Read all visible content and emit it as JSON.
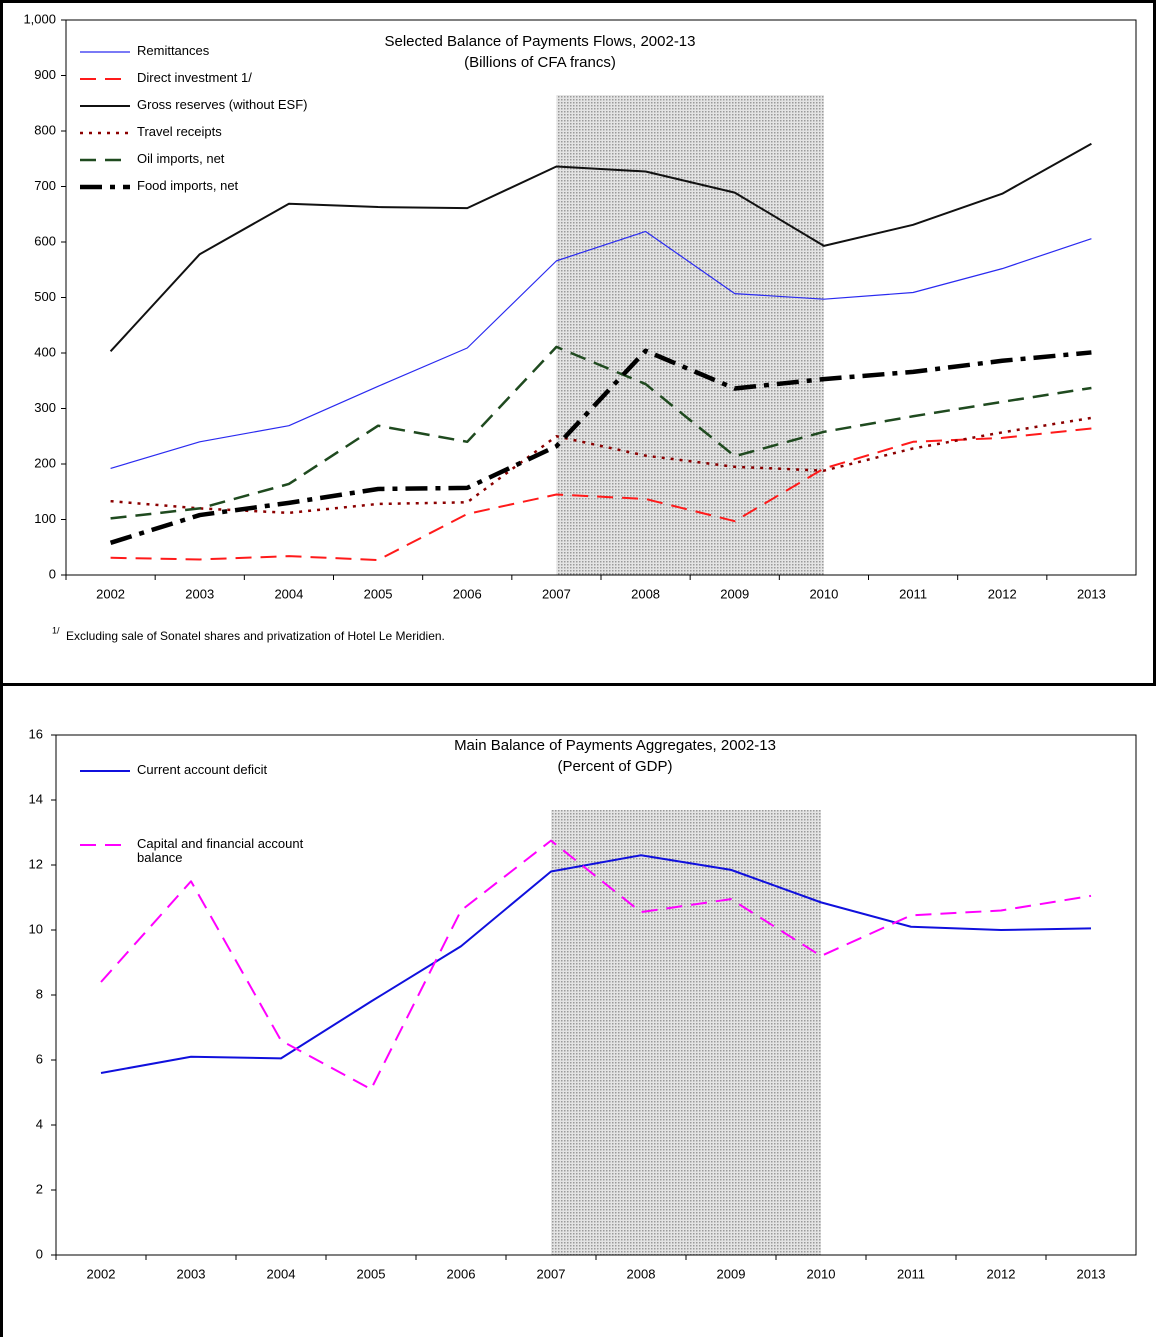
{
  "chart_data": [
    {
      "type": "line",
      "title": "Selected Balance of Payments Flows, 2002-13",
      "subtitle": "(Billions of CFA francs)",
      "categories": [
        "2002",
        "2003",
        "2004",
        "2005",
        "2006",
        "2007",
        "2008",
        "2009",
        "2010",
        "2011",
        "2012",
        "2013"
      ],
      "ylim": [
        0,
        1000
      ],
      "yticks": [
        0,
        100,
        200,
        300,
        400,
        500,
        600,
        700,
        800,
        900,
        {
          "value": 1000,
          "label": "1,000"
        }
      ],
      "shaded": [
        "2007",
        "2010"
      ],
      "series": [
        {
          "name": "Remittances",
          "color": "#2a2af0",
          "style": "solid",
          "width": 1.2,
          "values": [
            192,
            240,
            269,
            340,
            409,
            566,
            619,
            507,
            497,
            509,
            552,
            606
          ]
        },
        {
          "name": "Direct investment 1/",
          "color": "#ff1a1a",
          "style": "dashed",
          "width": 2,
          "values": [
            31,
            28,
            34,
            27,
            110,
            145,
            137,
            97,
            192,
            240,
            247,
            264
          ]
        },
        {
          "name": "Gross reserves (without ESF)",
          "color": "#111111",
          "style": "solid",
          "width": 2,
          "values": [
            403,
            578,
            669,
            663,
            661,
            736,
            727,
            689,
            593,
            631,
            687,
            777
          ]
        },
        {
          "name": "Travel receipts",
          "color": "#8b0000",
          "style": "dotted",
          "width": 2.5,
          "values": [
            133,
            120,
            112,
            128,
            131,
            250,
            215,
            195,
            188,
            228,
            257,
            283
          ]
        },
        {
          "name": "Oil imports, net",
          "color": "#1f4a1f",
          "style": "dashed",
          "width": 2.5,
          "values": [
            102,
            120,
            164,
            269,
            240,
            411,
            344,
            214,
            258,
            286,
            312,
            337
          ]
        },
        {
          "name": "Food imports, net",
          "color": "#000000",
          "style": "dashdot",
          "width": 4.5,
          "values": [
            58,
            108,
            130,
            155,
            157,
            232,
            404,
            336,
            353,
            366,
            386,
            401
          ]
        }
      ],
      "footnote": {
        "marker": "1/",
        "text": "Excluding sale of Sonatel shares and privatization of Hotel Le Meridien."
      }
    },
    {
      "type": "line",
      "title": "Main Balance of Payments Aggregates, 2002-13",
      "subtitle": "(Percent of GDP)",
      "categories": [
        "2002",
        "2003",
        "2004",
        "2005",
        "2006",
        "2007",
        "2008",
        "2009",
        "2010",
        "2011",
        "2012",
        "2013"
      ],
      "ylim": [
        0,
        16
      ],
      "yticks": [
        0,
        2,
        4,
        6,
        8,
        10,
        12,
        14,
        16
      ],
      "shaded": [
        "2007",
        "2010"
      ],
      "series": [
        {
          "name": "Current account deficit",
          "color": "#1010dd",
          "style": "solid",
          "width": 2,
          "values": [
            5.6,
            6.1,
            6.05,
            7.8,
            9.5,
            11.8,
            12.3,
            11.85,
            10.85,
            10.1,
            10.0,
            10.05
          ]
        },
        {
          "name": "Capital and financial account balance",
          "color": "#ff00ff",
          "style": "dashed",
          "width": 2,
          "values": [
            8.4,
            11.5,
            6.6,
            5.1,
            10.6,
            12.75,
            10.55,
            10.95,
            9.2,
            10.45,
            10.6,
            11.05
          ]
        }
      ]
    }
  ]
}
